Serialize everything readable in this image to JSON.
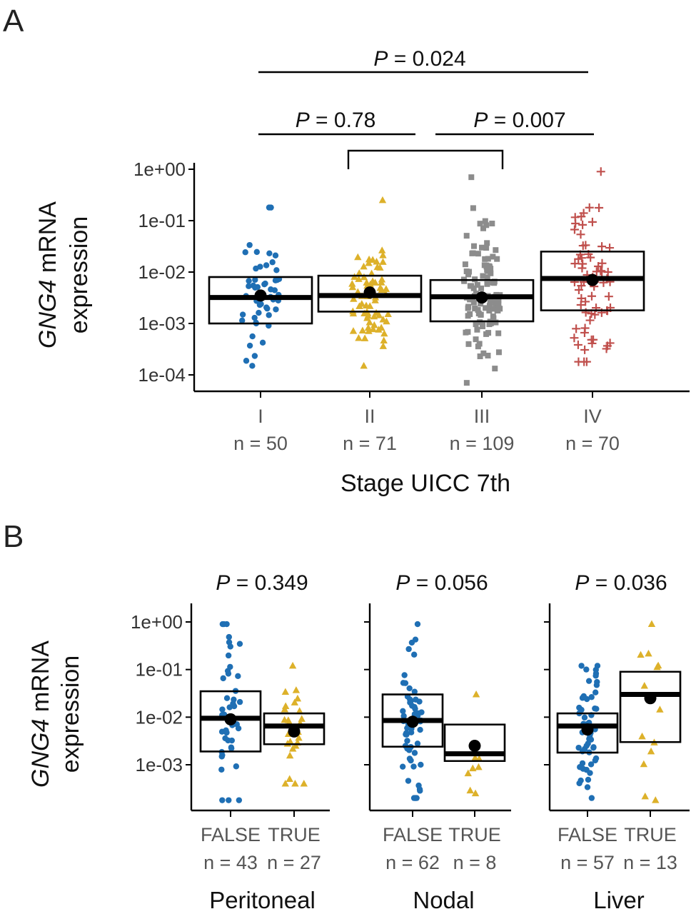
{
  "chart_data": [
    {
      "panel": "A",
      "type": "box-jitter",
      "ylabel_italic": "GNG4",
      "ylabel_rest": " mRNA",
      "ylabel_line2": "expression",
      "xlabel": "Stage UICC 7th",
      "y_scale": "log10",
      "ylim": [
        6e-05,
        1.6
      ],
      "y_ticks": [
        "1e+00",
        "1e-01",
        "1e-02",
        "1e-03",
        "1e-04"
      ],
      "y_tick_values": [
        1,
        0.1,
        0.01,
        0.001,
        0.0001
      ],
      "categories": [
        {
          "label": "I",
          "n_label": "n = 50",
          "n": 50,
          "color": "#1f6fb4",
          "shape": "circle",
          "box": {
            "q1": 0.001,
            "median": 0.0032,
            "q3": 0.008
          },
          "mean": 0.0035,
          "range": [
            0.00015,
            0.18
          ]
        },
        {
          "label": "II",
          "n_label": "n = 71",
          "n": 71,
          "color": "#ddb12a",
          "shape": "triangle",
          "box": {
            "q1": 0.0017,
            "median": 0.0035,
            "q3": 0.0085
          },
          "mean": 0.004,
          "range": [
            0.00015,
            0.25
          ]
        },
        {
          "label": "III",
          "n_label": "n = 109",
          "n": 109,
          "color": "#8c8c8c",
          "shape": "square",
          "box": {
            "q1": 0.0011,
            "median": 0.0033,
            "q3": 0.007
          },
          "mean": 0.0032,
          "range": [
            7e-05,
            0.7
          ]
        },
        {
          "label": "IV",
          "n_label": "n = 70",
          "n": 70,
          "color": "#c0504d",
          "shape": "plus",
          "box": {
            "q1": 0.0018,
            "median": 0.0075,
            "q3": 0.025
          },
          "mean": 0.007,
          "range": [
            0.00018,
            0.9
          ]
        }
      ],
      "comparisons": [
        {
          "groups": [
            "I",
            "IV"
          ],
          "p_prefix": "P",
          "p_text": " = 0.024",
          "style": "line"
        },
        {
          "groups": [
            "I",
            "II"
          ],
          "p_prefix": "P",
          "p_text": " = 0.78",
          "style": "line"
        },
        {
          "groups": [
            "III",
            "IV"
          ],
          "p_prefix": "P",
          "p_text": " = 0.007",
          "style": "line"
        },
        {
          "groups": [
            "II",
            "III"
          ],
          "style": "bracket"
        }
      ]
    },
    {
      "panel": "B",
      "type": "box-jitter-facets",
      "ylabel_italic": "GNG4",
      "ylabel_rest": " mRNA",
      "ylabel_line2": "expression",
      "y_scale": "log10",
      "ylim": [
        0.00012,
        1.6
      ],
      "y_ticks": [
        "1e+00",
        "1e-01",
        "1e-02",
        "1e-03"
      ],
      "y_tick_values": [
        1,
        0.1,
        0.01,
        0.001
      ],
      "facets": [
        {
          "name": "Peritoneal",
          "p_prefix": "P",
          "p_text": " = 0.349",
          "groups": [
            {
              "label": "FALSE",
              "n_label": "n = 43",
              "n": 43,
              "color": "#1f6fb4",
              "shape": "circle",
              "box": {
                "q1": 0.0019,
                "median": 0.0095,
                "q3": 0.035
              },
              "mean": 0.009,
              "range": [
                0.00018,
                0.9
              ]
            },
            {
              "label": "TRUE",
              "n_label": "n = 27",
              "n": 27,
              "color": "#ddb12a",
              "shape": "triangle",
              "box": {
                "q1": 0.0027,
                "median": 0.0065,
                "q3": 0.012
              },
              "mean": 0.005,
              "range": [
                0.0004,
                0.12
              ]
            }
          ]
        },
        {
          "name": "Nodal",
          "p_prefix": "P",
          "p_text": " = 0.056",
          "groups": [
            {
              "label": "FALSE",
              "n_label": "n = 62",
              "n": 62,
              "color": "#1f6fb4",
              "shape": "circle",
              "box": {
                "q1": 0.0024,
                "median": 0.0085,
                "q3": 0.03
              },
              "mean": 0.008,
              "range": [
                0.0002,
                0.9
              ]
            },
            {
              "label": "TRUE",
              "n_label": "n = 8",
              "n": 8,
              "color": "#ddb12a",
              "shape": "triangle",
              "box": {
                "q1": 0.0012,
                "median": 0.0017,
                "q3": 0.007
              },
              "mean": 0.0025,
              "range": [
                0.00025,
                0.03
              ]
            }
          ]
        },
        {
          "name": "Liver",
          "p_prefix": "P",
          "p_text": " = 0.036",
          "groups": [
            {
              "label": "FALSE",
              "n_label": "n = 57",
              "n": 57,
              "color": "#1f6fb4",
              "shape": "circle",
              "box": {
                "q1": 0.0018,
                "median": 0.0065,
                "q3": 0.012
              },
              "mean": 0.0055,
              "range": [
                0.0002,
                0.12
              ]
            },
            {
              "label": "TRUE",
              "n_label": "n = 13",
              "n": 13,
              "color": "#ddb12a",
              "shape": "triangle",
              "box": {
                "q1": 0.003,
                "median": 0.03,
                "q3": 0.09
              },
              "mean": 0.025,
              "range": [
                0.00018,
                0.9
              ]
            }
          ]
        }
      ]
    }
  ]
}
